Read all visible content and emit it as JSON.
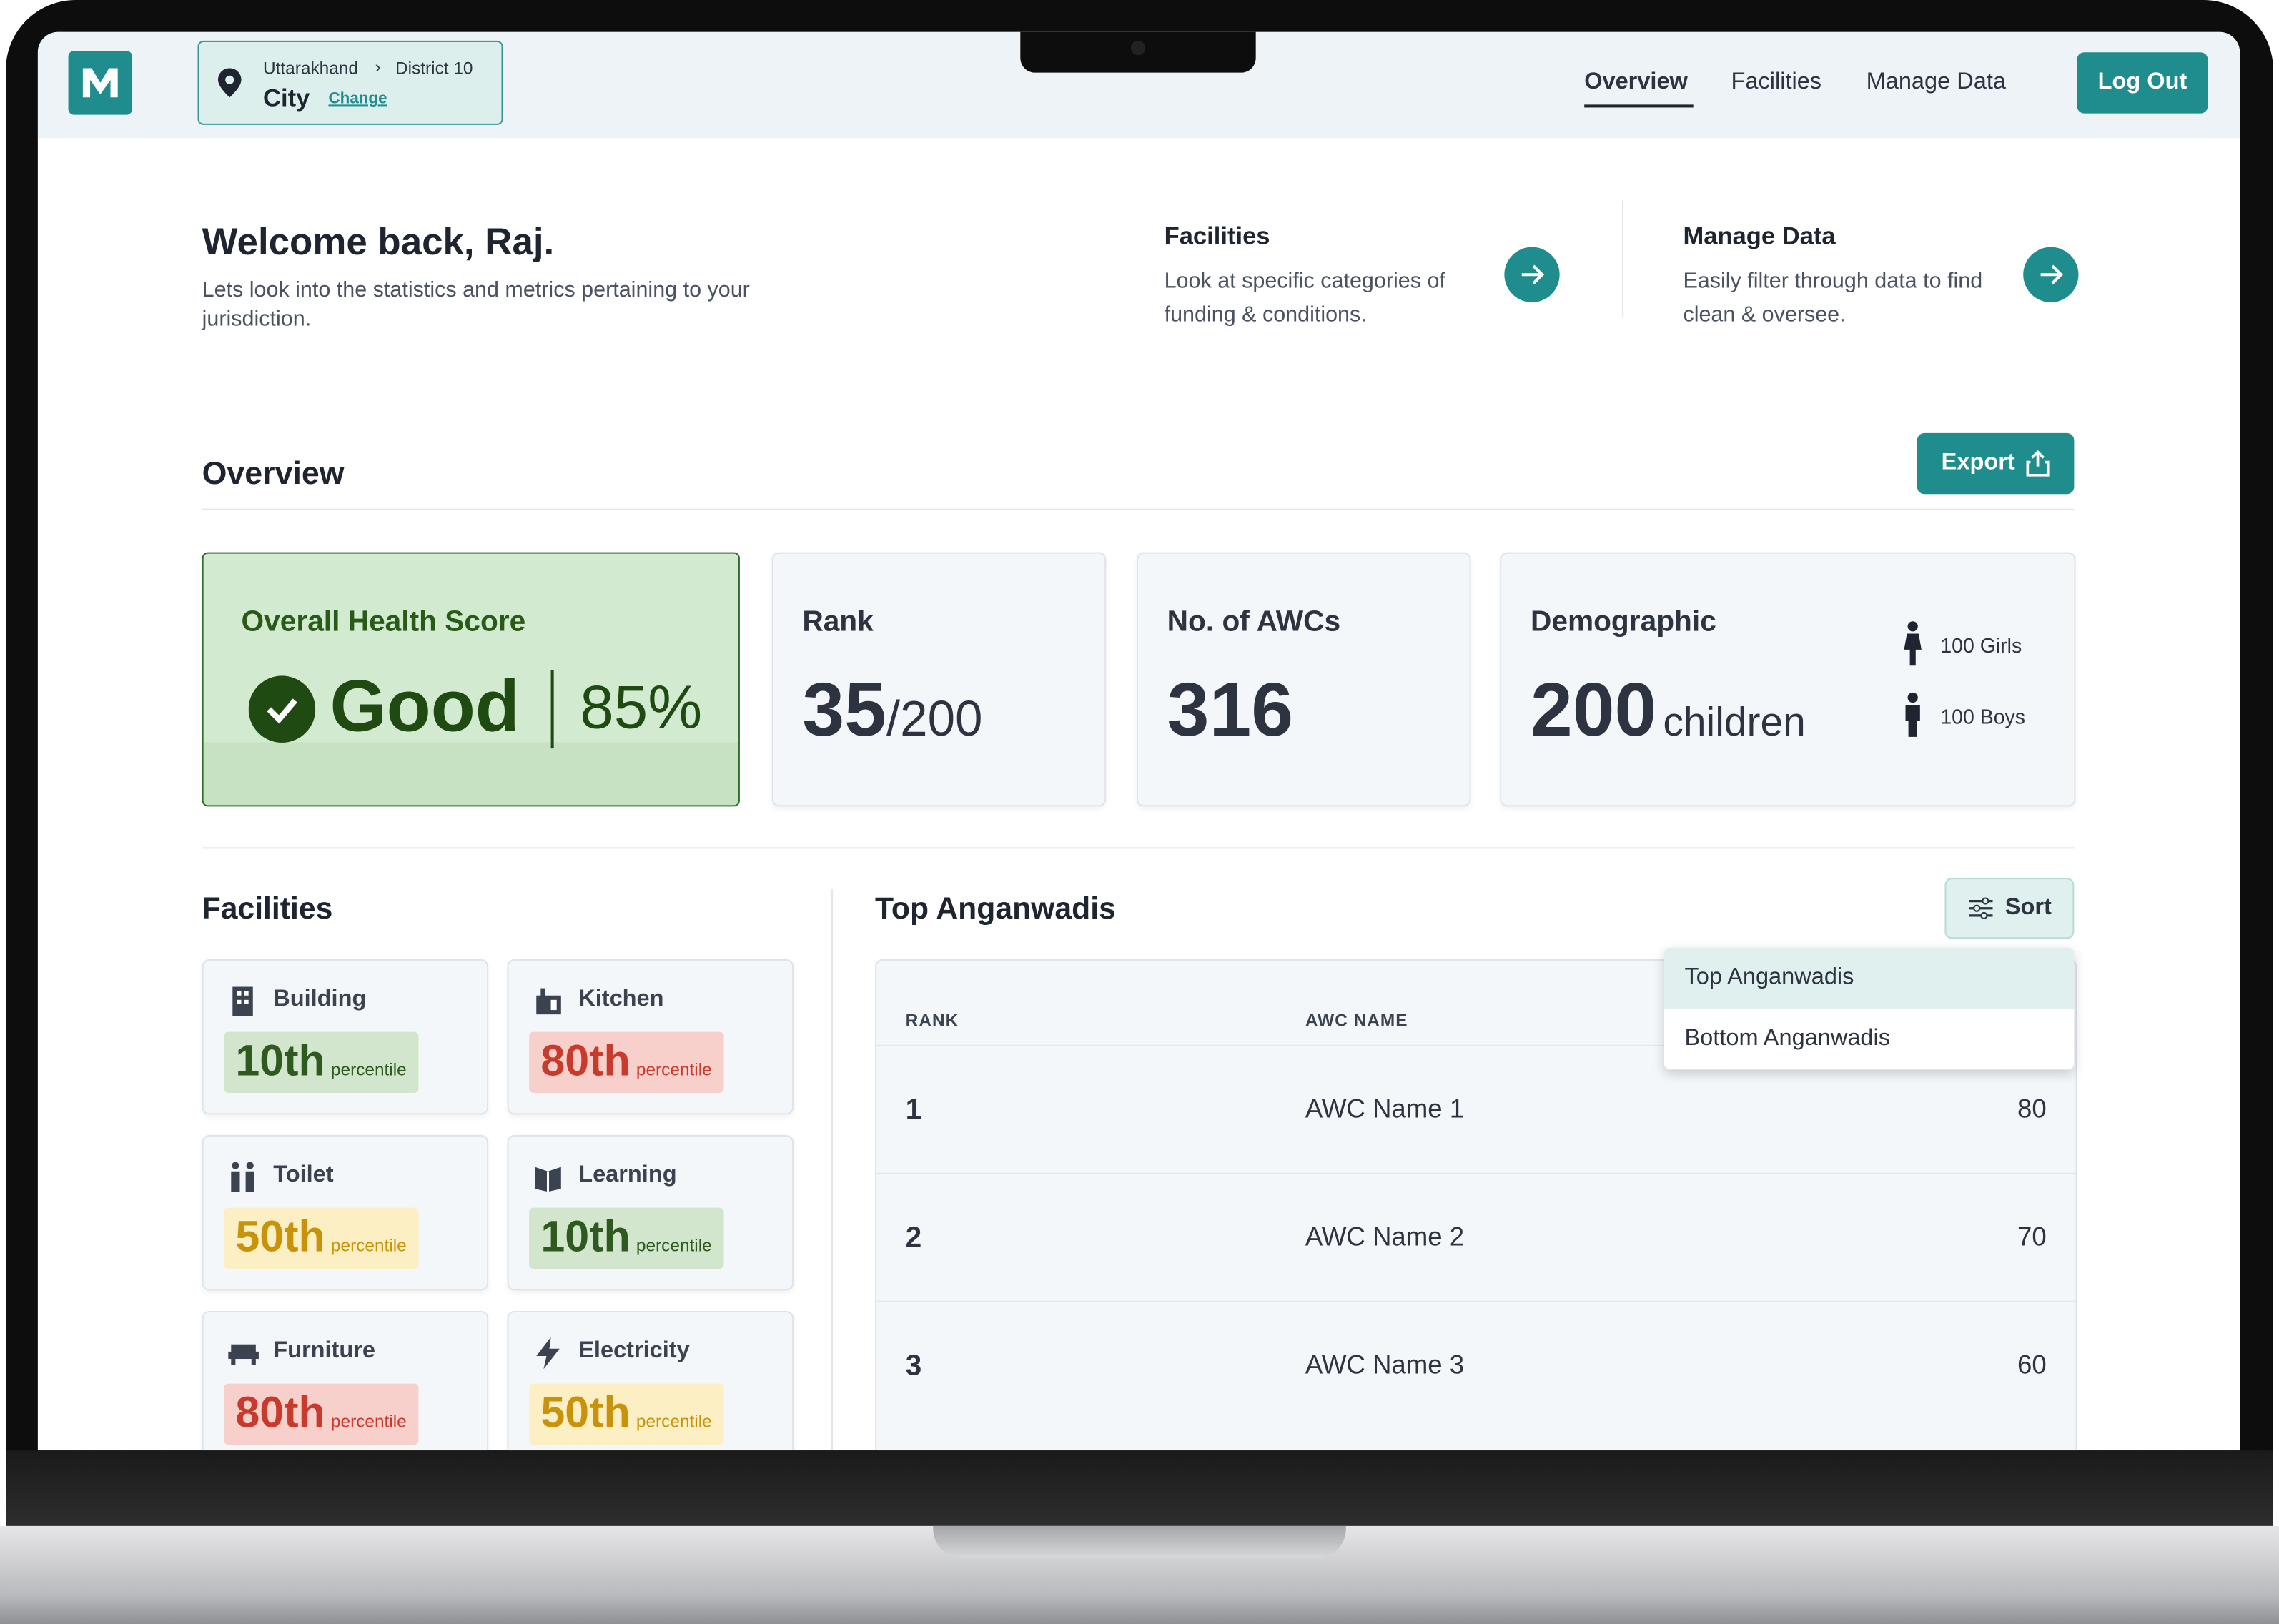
{
  "location": {
    "state": "Uttarakhand",
    "district": "District 10",
    "city": "City",
    "change": "Change"
  },
  "nav": {
    "links": [
      "Overview",
      "Facilities",
      "Manage Data"
    ],
    "logout": "Log Out"
  },
  "welcome": {
    "title": "Welcome back, Raj.",
    "subtitle": "Lets look into the statistics and metrics pertaining to your jurisdiction."
  },
  "shortcuts": [
    {
      "title": "Facilities",
      "description": "Look at specific categories of funding & conditions."
    },
    {
      "title": "Manage Data",
      "description": "Easily filter through data to find clean & oversee."
    }
  ],
  "overview": {
    "title": "Overview",
    "export": "Export"
  },
  "cards": {
    "health": {
      "label": "Overall Health Score",
      "status": "Good",
      "score": "85%"
    },
    "rank": {
      "label": "Rank",
      "value": 35,
      "total": "/200"
    },
    "awcs": {
      "label": "No. of AWCs",
      "value": 316
    },
    "demographic": {
      "label": "Demographic",
      "value": 200,
      "unit": "children",
      "girls": "100 Girls",
      "boys": "100 Boys"
    }
  },
  "facilities": {
    "title": "Facilities",
    "items": [
      {
        "name": "Building",
        "rank": "10th",
        "suffix": "percentile",
        "level": "good"
      },
      {
        "name": "Kitchen",
        "rank": "80th",
        "suffix": "percentile",
        "level": "bad"
      },
      {
        "name": "Toilet",
        "rank": "50th",
        "suffix": "percentile",
        "level": "mid"
      },
      {
        "name": "Learning",
        "rank": "10th",
        "suffix": "percentile",
        "level": "good"
      },
      {
        "name": "Furniture",
        "rank": "80th",
        "suffix": "percentile",
        "level": "bad"
      },
      {
        "name": "Electricity",
        "rank": "50th",
        "suffix": "percentile",
        "level": "mid"
      }
    ]
  },
  "top": {
    "title": "Top Anganwadis",
    "sort": "Sort",
    "dropdown": [
      "Top Anganwadis",
      "Bottom Anganwadis"
    ],
    "headers": [
      "RANK",
      "AWC NAME"
    ],
    "rows": [
      [
        1,
        "AWC Name 1",
        80
      ],
      [
        2,
        "AWC Name 2",
        70
      ],
      [
        3,
        "AWC Name 3",
        60
      ]
    ]
  }
}
